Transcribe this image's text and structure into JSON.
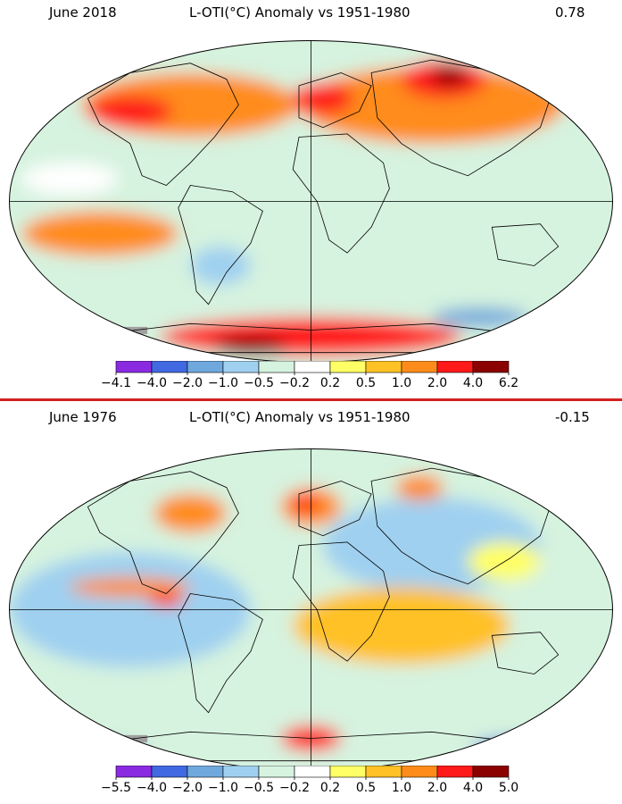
{
  "panels": [
    {
      "date": "June 2018",
      "title": "L-OTI(°C) Anomaly vs 1951-1980",
      "mean": "0.78",
      "ticks": [
        "−4.1",
        "−4.0",
        "−2.0",
        "−1.0",
        "−0.5",
        "−0.2",
        "0.2",
        "0.5",
        "1.0",
        "2.0",
        "4.0",
        "6.2"
      ],
      "theme": "warm"
    },
    {
      "date": "June 1976",
      "title": "L-OTI(°C) Anomaly vs 1951-1980",
      "mean": "-0.15",
      "ticks": [
        "−5.5",
        "−4.0",
        "−2.0",
        "−1.0",
        "−0.5",
        "−0.2",
        "0.2",
        "0.5",
        "1.0",
        "2.0",
        "4.0",
        "5.0"
      ],
      "theme": "cool"
    }
  ],
  "colors": [
    "#8a2be2",
    "#4169e1",
    "#6fa8dc",
    "#9fd0f0",
    "#d6f3df",
    "#ffffff",
    "#ffff66",
    "#ffc125",
    "#ff8c1a",
    "#ff1a1a",
    "#8b0000"
  ],
  "missing_color": "#a0a0a0"
}
